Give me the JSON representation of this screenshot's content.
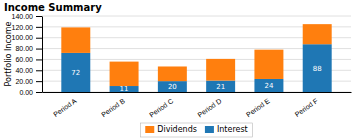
{
  "chart_data": {
    "type": "bar",
    "title": "Income Summary",
    "ylabel": "Portfolio Income",
    "categories": [
      "Period A",
      "Period B",
      "Period C",
      "Period D",
      "Period E",
      "Period F"
    ],
    "series": [
      {
        "name": "Interest",
        "values": [
          72,
          11,
          20,
          21,
          24,
          88
        ],
        "data_labels": true
      },
      {
        "name": "Dividends",
        "values": [
          47,
          45,
          27,
          40,
          54,
          37
        ]
      }
    ],
    "stacked": true,
    "ylim": [
      0,
      140
    ],
    "yticks": [
      {
        "value": 0,
        "label": "0.00"
      },
      {
        "value": 20,
        "label": "20.00"
      },
      {
        "value": 40,
        "label": "40.00"
      },
      {
        "value": 60,
        "label": "60.00"
      },
      {
        "value": 80,
        "label": "80.00"
      },
      {
        "value": 100,
        "label": "100.00"
      },
      {
        "value": 120,
        "label": "120.00"
      },
      {
        "value": 140,
        "label": "140.00"
      }
    ],
    "grid": true,
    "legend": "bottom"
  }
}
